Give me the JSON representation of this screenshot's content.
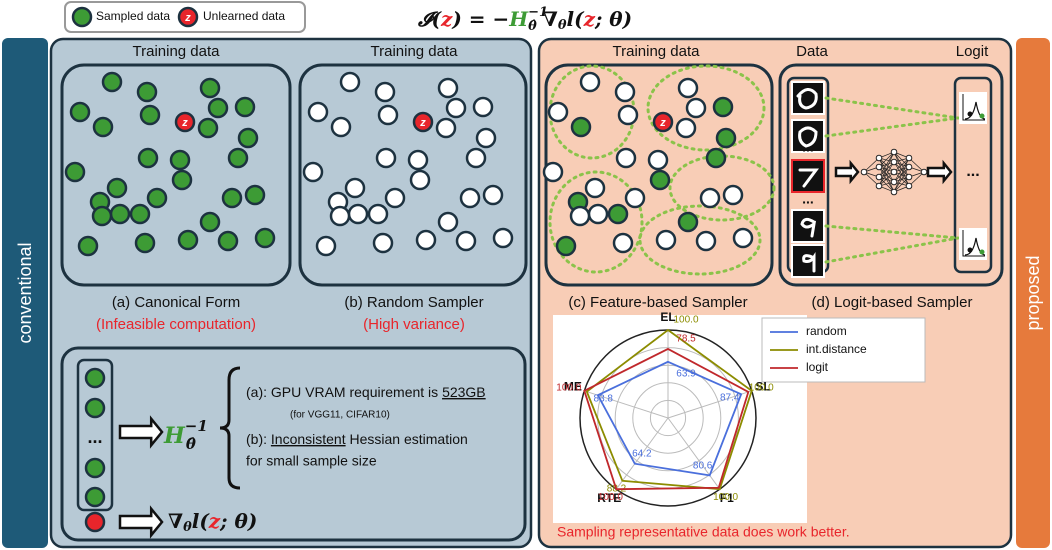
{
  "legend": {
    "sampled": "Sampled data",
    "unlearned": "Unlearned data",
    "z": "z"
  },
  "formula": {
    "lhs": "𝓘(",
    "z": "z",
    "eq": ") = −",
    "H": "H",
    "H_sup": "−1",
    "H_sub": "θ̂",
    "grad": "∇",
    "grad_sub": "θ",
    "l": "l(",
    "rest": "; θ)"
  },
  "sides": {
    "left": "conventional",
    "right": "proposed"
  },
  "panels": {
    "a": {
      "header": "Training data",
      "caption": "(a) Canonical Form",
      "note": "(Infeasible computation)"
    },
    "b": {
      "header": "Training data",
      "caption": "(b) Random Sampler",
      "note": "(High variance)"
    },
    "c": {
      "header": "Training data",
      "caption": "(c) Feature-based Sampler"
    },
    "d": {
      "header_data": "Data",
      "header_logit": "Logit",
      "caption": "(d) Logit-based Sampler"
    }
  },
  "ellipsis": "...",
  "hessian": {
    "a_prefix": "(a): GPU VRAM requirement is ",
    "a_value": "523GB",
    "a_note": "(for VGG11, CIFAR10)",
    "b_prefix": "(b): ",
    "b_key": "Inconsistent",
    "b_suffix": " Hessian estimation",
    "b_line2": "for small sample size"
  },
  "chart_data": {
    "type": "radar",
    "categories": [
      "EL",
      "SL",
      "F1",
      "RTE",
      "ME"
    ],
    "rlim": [
      0,
      100
    ],
    "legend": "upper right",
    "series": [
      {
        "name": "random",
        "color": "#4a6fdc",
        "values": [
          63.9,
          87.4,
          80.6,
          64.2,
          83.8
        ],
        "value_labels": [
          "63.9",
          "87.4",
          "80.6",
          "64.2",
          "83.8"
        ]
      },
      {
        "name": "int.distance",
        "color": "#8c8c00",
        "values": [
          100,
          100,
          100,
          88.2,
          97
        ],
        "value_labels": [
          "100.0",
          "100.0",
          "100.0",
          "88.2",
          null
        ]
      },
      {
        "name": "logit",
        "color": "#c0282c",
        "values": [
          78.5,
          96,
          98,
          100,
          100
        ],
        "value_labels": [
          "78.5",
          null,
          null,
          "100.0",
          "100.0"
        ]
      }
    ]
  },
  "chart_note": "Sampling representative data does work better."
}
